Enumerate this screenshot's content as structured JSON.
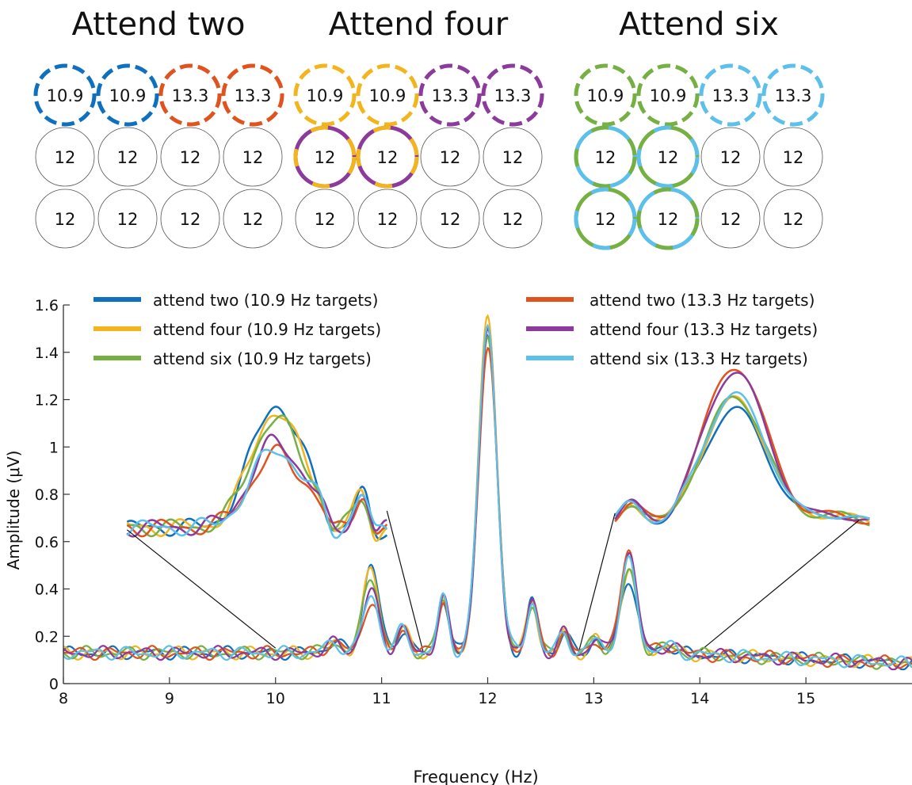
{
  "panels": [
    {
      "title": "Attend two",
      "grid": [
        [
          {
            "label": "10.9",
            "ring": [
              "#1070c0"
            ]
          },
          {
            "label": "10.9",
            "ring": [
              "#1070c0"
            ]
          },
          {
            "label": "13.3",
            "ring": [
              "#e0531e"
            ]
          },
          {
            "label": "13.3",
            "ring": [
              "#e0531e"
            ]
          }
        ],
        [
          {
            "label": "12",
            "ring": null
          },
          {
            "label": "12",
            "ring": null
          },
          {
            "label": "12",
            "ring": null
          },
          {
            "label": "12",
            "ring": null
          }
        ],
        [
          {
            "label": "12",
            "ring": null
          },
          {
            "label": "12",
            "ring": null
          },
          {
            "label": "12",
            "ring": null
          },
          {
            "label": "12",
            "ring": null
          }
        ]
      ]
    },
    {
      "title": "Attend four",
      "grid": [
        [
          {
            "label": "10.9",
            "ring": [
              "#f2b51e"
            ]
          },
          {
            "label": "10.9",
            "ring": [
              "#f2b51e"
            ]
          },
          {
            "label": "13.3",
            "ring": [
              "#8c3a9c"
            ]
          },
          {
            "label": "13.3",
            "ring": [
              "#8c3a9c"
            ]
          }
        ],
        [
          {
            "label": "12",
            "ring": [
              "#8c3a9c",
              "#f2b51e"
            ]
          },
          {
            "label": "12",
            "ring": [
              "#8c3a9c",
              "#f2b51e"
            ]
          },
          {
            "label": "12",
            "ring": null
          },
          {
            "label": "12",
            "ring": null
          }
        ],
        [
          {
            "label": "12",
            "ring": null
          },
          {
            "label": "12",
            "ring": null
          },
          {
            "label": "12",
            "ring": null
          },
          {
            "label": "12",
            "ring": null
          }
        ]
      ]
    },
    {
      "title": "Attend six",
      "grid": [
        [
          {
            "label": "10.9",
            "ring": [
              "#76b043"
            ]
          },
          {
            "label": "10.9",
            "ring": [
              "#76b043"
            ]
          },
          {
            "label": "13.3",
            "ring": [
              "#5cc0ea"
            ]
          },
          {
            "label": "13.3",
            "ring": [
              "#5cc0ea"
            ]
          }
        ],
        [
          {
            "label": "12",
            "ring": [
              "#5cc0ea",
              "#76b043"
            ]
          },
          {
            "label": "12",
            "ring": [
              "#76b043",
              "#5cc0ea"
            ]
          },
          {
            "label": "12",
            "ring": null
          },
          {
            "label": "12",
            "ring": null
          }
        ],
        [
          {
            "label": "12",
            "ring": [
              "#76b043",
              "#5cc0ea"
            ]
          },
          {
            "label": "12",
            "ring": [
              "#5cc0ea",
              "#76b043"
            ]
          },
          {
            "label": "12",
            "ring": null
          },
          {
            "label": "12",
            "ring": null
          }
        ]
      ]
    }
  ],
  "chart_data": {
    "type": "line",
    "xlabel": "Frequency (Hz)",
    "ylabel": "Amplitude (μV)",
    "xlim": [
      8,
      16
    ],
    "ylim": [
      0,
      1.6
    ],
    "xticks": [
      8,
      9,
      10,
      11,
      12,
      13,
      14,
      15
    ],
    "yticks": [
      0,
      0.2,
      0.4,
      0.6,
      0.8,
      1,
      1.2,
      1.4,
      1.6
    ],
    "ytick_labels": [
      "0",
      "0.2",
      "0.4",
      "0.6",
      "0.8",
      "1",
      "1.2",
      "1.4",
      "1.6"
    ],
    "grid": false,
    "legend_position": "top",
    "series": [
      {
        "name": "attend two (10.9 Hz targets)",
        "color": "#1070c0",
        "peak_10_9": 0.49,
        "peak_12": 1.46,
        "peak_13_3": 0.44,
        "inset_10_2": 1.18,
        "inset_14_3": 1.16
      },
      {
        "name": "attend four (10.9 Hz targets)",
        "color": "#f2b51e",
        "peak_10_9": 0.47,
        "peak_12": 1.54,
        "peak_13_3": 0.48,
        "inset_10_2": 1.15,
        "inset_14_3": 1.2
      },
      {
        "name": "attend six (10.9 Hz targets)",
        "color": "#76b043",
        "peak_10_9": 0.45,
        "peak_12": 1.48,
        "peak_13_3": 0.46,
        "inset_10_2": 1.12,
        "inset_14_3": 1.21
      },
      {
        "name": "attend two (13.3 Hz targets)",
        "color": "#e0531e",
        "peak_10_9": 0.34,
        "peak_12": 1.42,
        "peak_13_3": 0.56,
        "inset_10_2": 0.97,
        "inset_14_3": 1.34
      },
      {
        "name": "attend four (13.3 Hz targets)",
        "color": "#8c3a9c",
        "peak_10_9": 0.38,
        "peak_12": 1.47,
        "peak_13_3": 0.54,
        "inset_10_2": 1.02,
        "inset_14_3": 1.32
      },
      {
        "name": "attend six (13.3 Hz targets)",
        "color": "#5cc0ea",
        "peak_10_9": 0.36,
        "peak_12": 1.5,
        "peak_13_3": 0.5,
        "inset_10_2": 0.99,
        "inset_14_3": 1.22
      }
    ]
  }
}
